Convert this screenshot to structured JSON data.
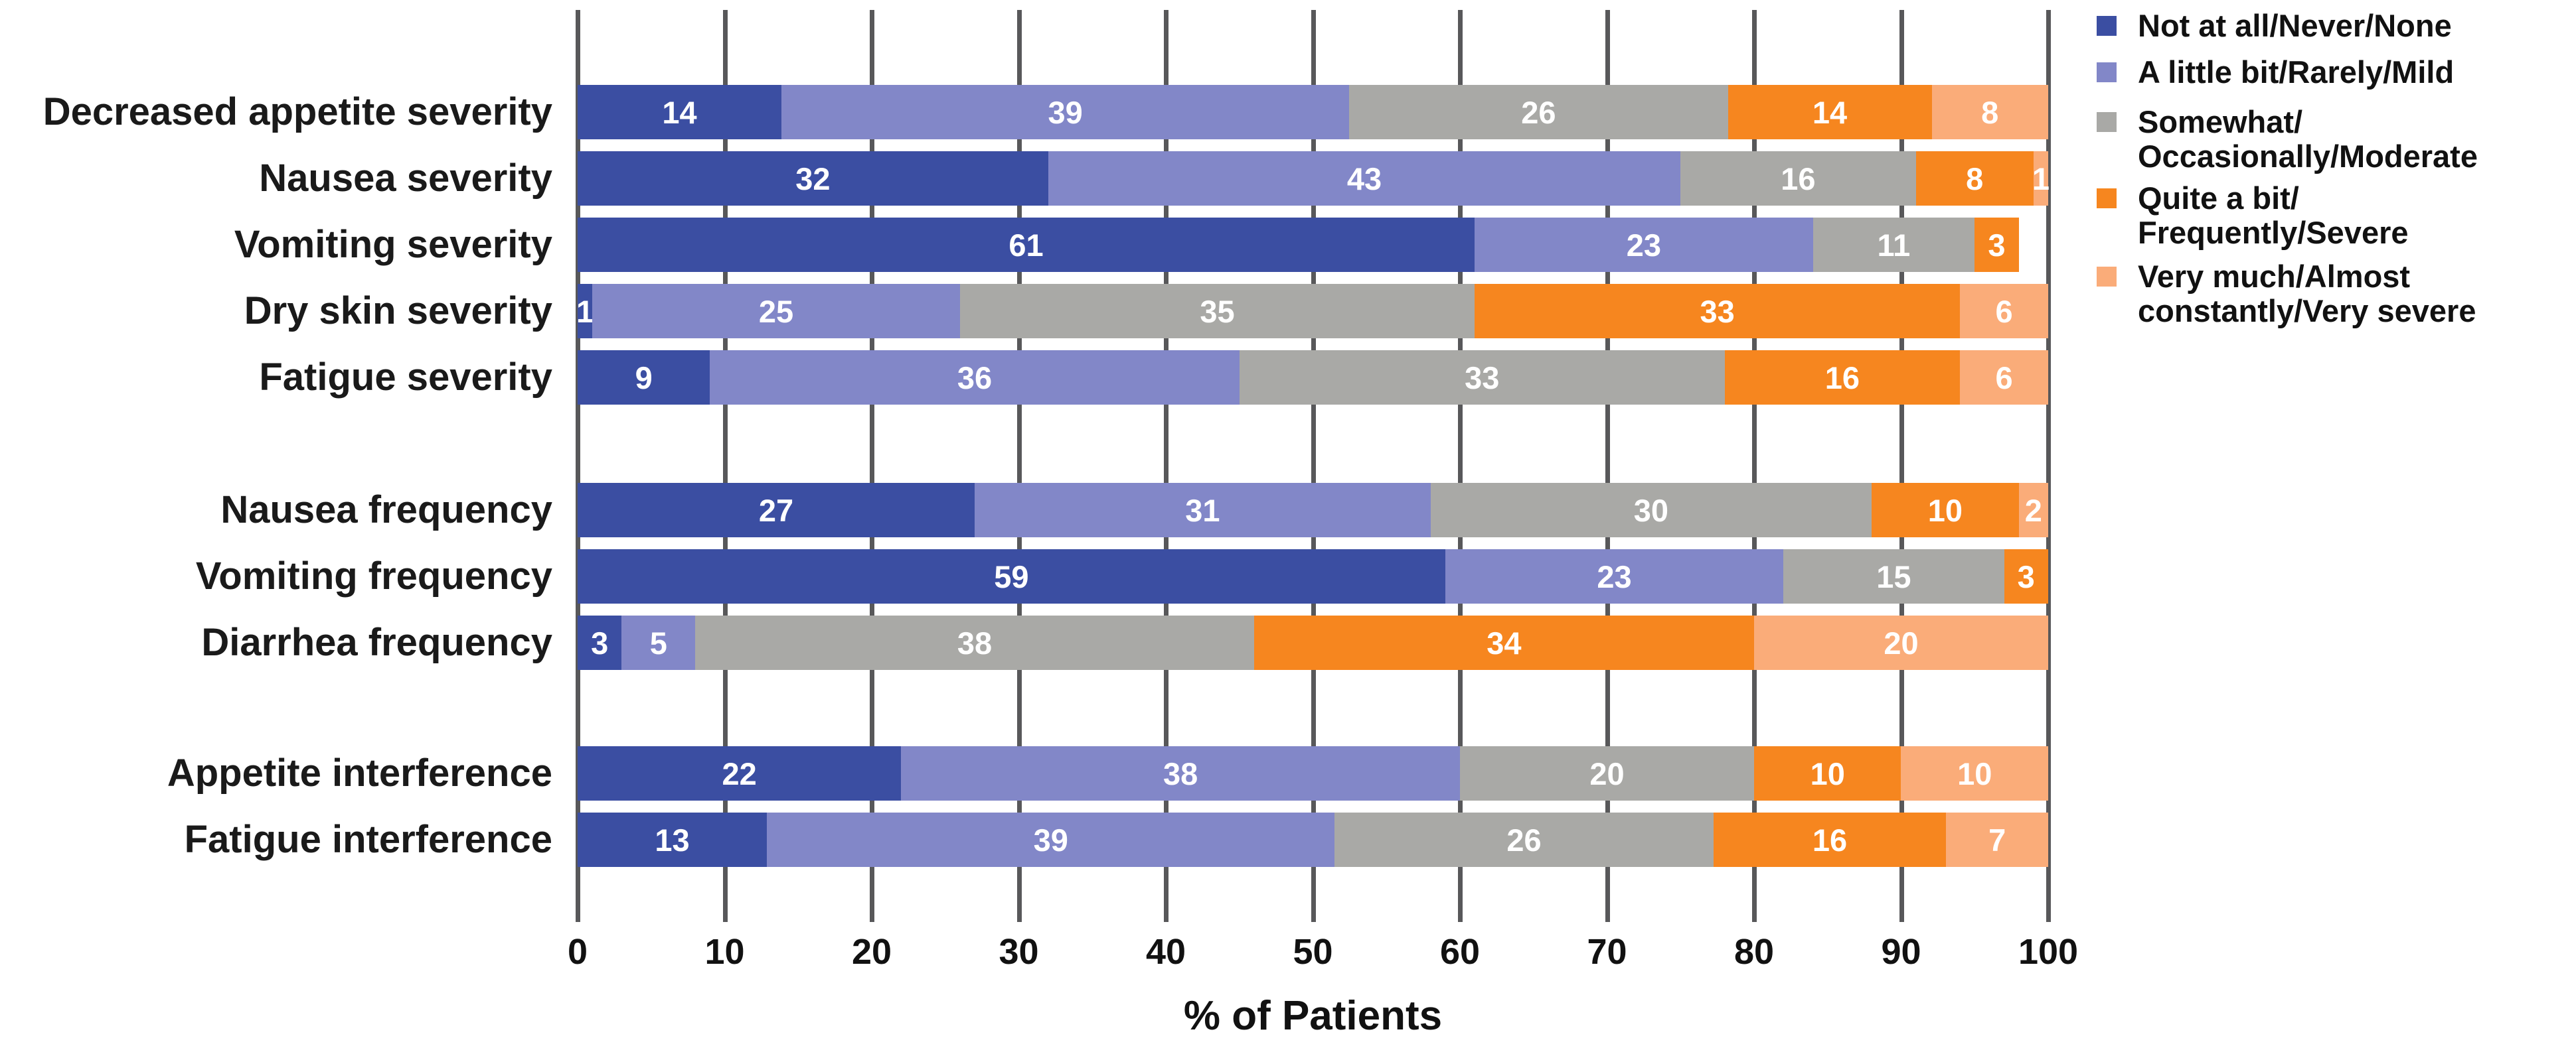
{
  "chart_data": {
    "type": "bar",
    "orientation": "horizontal_stacked",
    "title": "",
    "xlabel": "% of Patients",
    "xlim": [
      0,
      100
    ],
    "xticks": [
      0,
      10,
      20,
      30,
      40,
      50,
      60,
      70,
      80,
      90,
      100
    ],
    "grid": "vertical",
    "legend_position": "right",
    "value_label_color": "#ffffff",
    "gridline_color": "#58585A",
    "series": [
      {
        "name": "Not at all/Never/None",
        "color": "#3B4EA2",
        "legend_lines": [
          "Not at all/Never/None"
        ]
      },
      {
        "name": "A little bit/Rarely/Mild",
        "color": "#8287C8",
        "legend_lines": [
          "A little bit/Rarely/Mild"
        ]
      },
      {
        "name": "Somewhat/Occasionally/Moderate",
        "color": "#A9A9A6",
        "legend_lines": [
          "Somewhat/",
          "Occasionally/Moderate"
        ]
      },
      {
        "name": "Quite a bit/Frequently/Severe",
        "color": "#F6861F",
        "legend_lines": [
          "Quite a bit/",
          "Frequently/Severe"
        ]
      },
      {
        "name": "Very much/Almost constantly/Very severe",
        "color": "#FAAC79",
        "legend_lines": [
          "Very much/Almost",
          "constantly/Very severe"
        ]
      }
    ],
    "groups": [
      {
        "name": "severity",
        "rows": [
          {
            "category": "Decreased appetite severity",
            "values": [
              14,
              39,
              26,
              14,
              8
            ]
          },
          {
            "category": "Nausea severity",
            "values": [
              32,
              43,
              16,
              8,
              1
            ]
          },
          {
            "category": "Vomiting severity",
            "values": [
              61,
              23,
              11,
              3,
              0
            ]
          },
          {
            "category": "Dry skin severity",
            "values": [
              1,
              25,
              35,
              33,
              6
            ]
          },
          {
            "category": "Fatigue severity",
            "values": [
              9,
              36,
              33,
              16,
              6
            ]
          }
        ]
      },
      {
        "name": "frequency",
        "rows": [
          {
            "category": "Nausea frequency",
            "values": [
              27,
              31,
              30,
              10,
              2
            ]
          },
          {
            "category": "Vomiting frequency",
            "values": [
              59,
              23,
              15,
              3,
              0
            ]
          },
          {
            "category": "Diarrhea frequency",
            "values": [
              3,
              5,
              38,
              34,
              20
            ]
          }
        ]
      },
      {
        "name": "interference",
        "rows": [
          {
            "category": "Appetite interference",
            "values": [
              22,
              38,
              20,
              10,
              10
            ]
          },
          {
            "category": "Fatigue interference",
            "values": [
              13,
              39,
              26,
              16,
              7
            ]
          }
        ]
      }
    ]
  }
}
